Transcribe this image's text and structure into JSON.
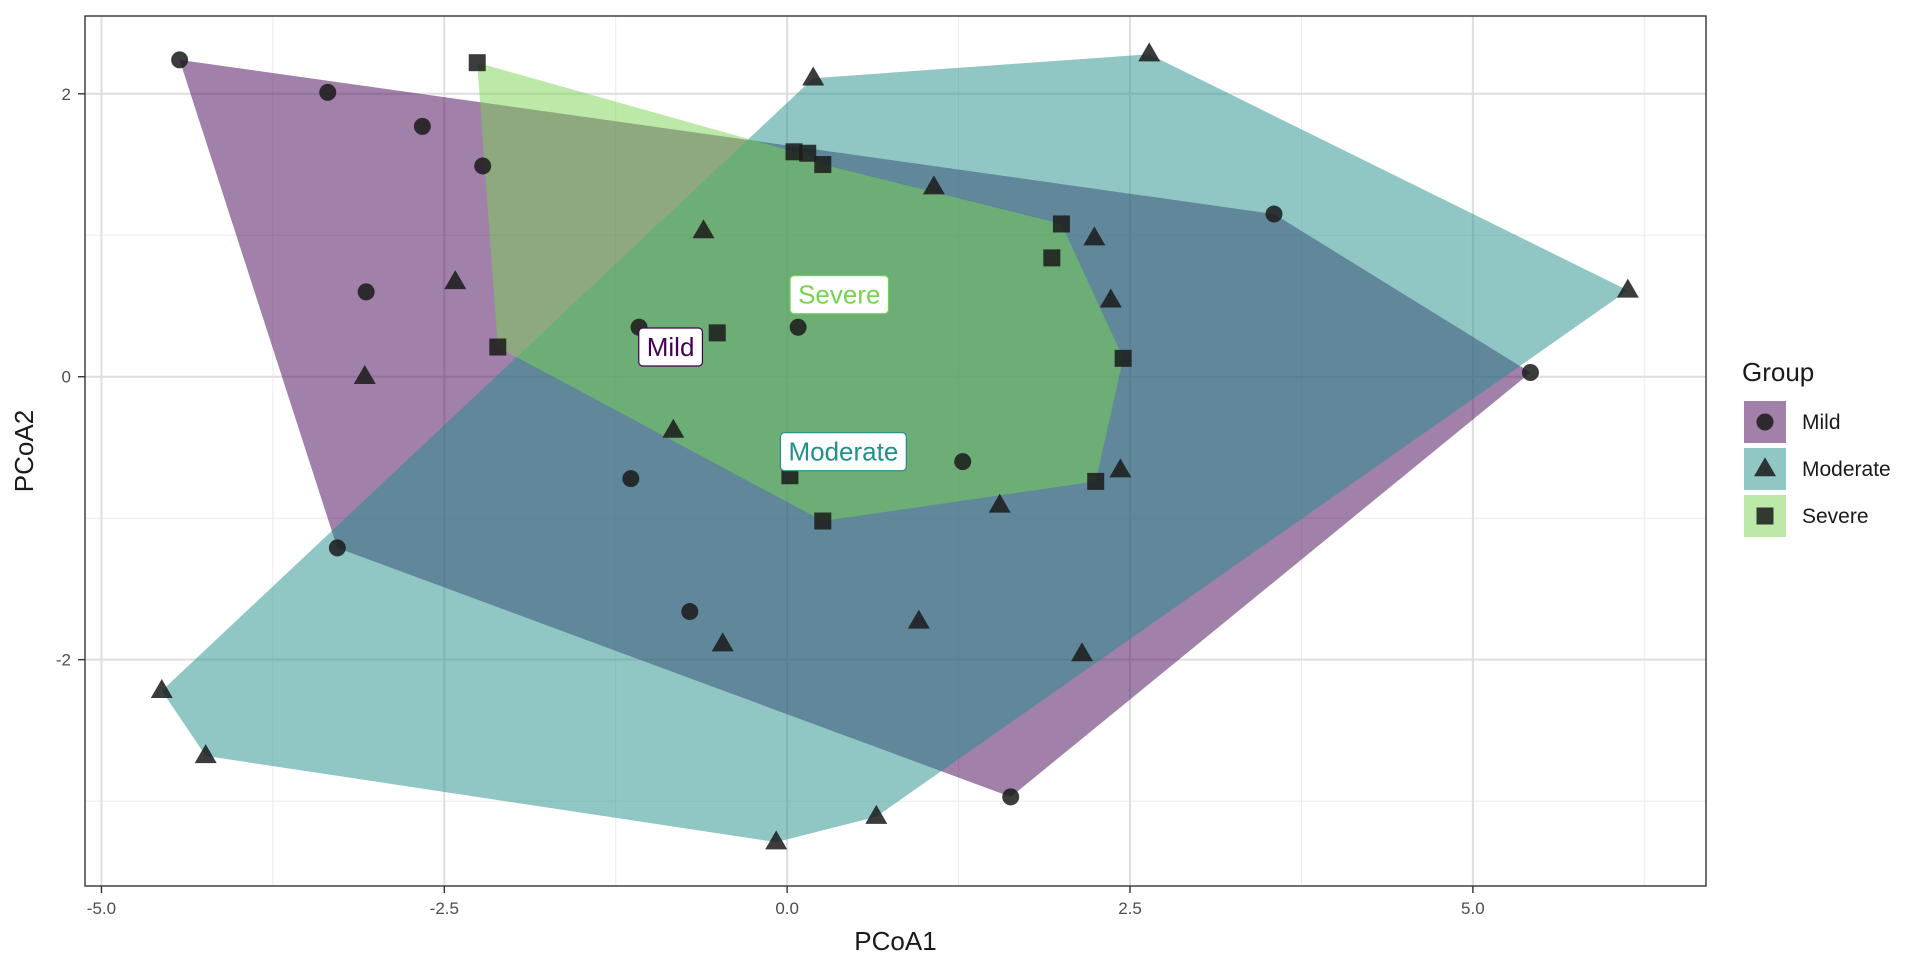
{
  "chart_data": {
    "type": "scatter",
    "title": "",
    "xlabel": "PCoA1",
    "ylabel": "PCoA2",
    "xlim": [
      -5.12,
      6.7
    ],
    "ylim": [
      -3.6,
      2.55
    ],
    "x_ticks": [
      -5.0,
      -2.5,
      0.0,
      2.5,
      5.0
    ],
    "x_tick_labels": [
      "-5.0",
      "-2.5",
      "0.0",
      "2.5",
      "5.0"
    ],
    "y_ticks": [
      -2,
      0,
      2
    ],
    "y_tick_labels": [
      "-2",
      "0",
      "2"
    ],
    "grid": true,
    "legend": {
      "title": "Group",
      "position": "right"
    },
    "series": [
      {
        "name": "Mild",
        "shape": "circle",
        "color": "#440154",
        "label_color": "#440154",
        "points": [
          {
            "x": -4.43,
            "y": 2.24
          },
          {
            "x": -3.35,
            "y": 2.01
          },
          {
            "x": -2.66,
            "y": 1.77
          },
          {
            "x": -2.22,
            "y": 1.49
          },
          {
            "x": -3.07,
            "y": 0.6
          },
          {
            "x": -1.08,
            "y": 0.35
          },
          {
            "x": 0.08,
            "y": 0.35
          },
          {
            "x": -1.14,
            "y": -0.72
          },
          {
            "x": 1.28,
            "y": -0.6
          },
          {
            "x": -3.28,
            "y": -1.21
          },
          {
            "x": -0.71,
            "y": -1.66
          },
          {
            "x": 3.55,
            "y": 1.15
          },
          {
            "x": 5.42,
            "y": 0.03
          },
          {
            "x": 1.63,
            "y": -2.97
          }
        ],
        "hull": [
          {
            "x": -4.43,
            "y": 2.24
          },
          {
            "x": 3.55,
            "y": 1.15
          },
          {
            "x": 5.42,
            "y": 0.03
          },
          {
            "x": 1.63,
            "y": -2.97
          },
          {
            "x": -3.28,
            "y": -1.21
          }
        ],
        "label": {
          "text": "Mild",
          "x": -0.85,
          "y": 0.21
        }
      },
      {
        "name": "Moderate",
        "shape": "triangle",
        "color": "#21908C",
        "label_color": "#21908C",
        "points": [
          {
            "x": 0.19,
            "y": 2.11
          },
          {
            "x": 2.64,
            "y": 2.28
          },
          {
            "x": 6.13,
            "y": 0.61
          },
          {
            "x": 1.07,
            "y": 1.34
          },
          {
            "x": -0.61,
            "y": 1.03
          },
          {
            "x": 2.24,
            "y": 0.98
          },
          {
            "x": 2.36,
            "y": 0.54
          },
          {
            "x": -2.42,
            "y": 0.67
          },
          {
            "x": -3.08,
            "y": 0.0
          },
          {
            "x": -0.83,
            "y": -0.38
          },
          {
            "x": 2.43,
            "y": -0.66
          },
          {
            "x": 1.55,
            "y": -0.91
          },
          {
            "x": 0.96,
            "y": -1.73
          },
          {
            "x": -0.47,
            "y": -1.89
          },
          {
            "x": 2.15,
            "y": -1.96
          },
          {
            "x": -4.56,
            "y": -2.22
          },
          {
            "x": -4.24,
            "y": -2.68
          },
          {
            "x": 0.65,
            "y": -3.11
          },
          {
            "x": -0.08,
            "y": -3.29
          }
        ],
        "hull": [
          {
            "x": 0.19,
            "y": 2.11
          },
          {
            "x": 2.64,
            "y": 2.28
          },
          {
            "x": 6.13,
            "y": 0.61
          },
          {
            "x": 0.65,
            "y": -3.11
          },
          {
            "x": -0.08,
            "y": -3.29
          },
          {
            "x": -4.24,
            "y": -2.68
          },
          {
            "x": -4.56,
            "y": -2.22
          }
        ],
        "label": {
          "text": "Moderate",
          "x": 0.41,
          "y": -0.53
        }
      },
      {
        "name": "Severe",
        "shape": "square",
        "color": "#7AD151",
        "label_color": "#7AD151",
        "points": [
          {
            "x": -2.26,
            "y": 2.22
          },
          {
            "x": 0.05,
            "y": 1.59
          },
          {
            "x": 0.15,
            "y": 1.58
          },
          {
            "x": 0.26,
            "y": 1.5
          },
          {
            "x": 2.0,
            "y": 1.08
          },
          {
            "x": 1.93,
            "y": 0.84
          },
          {
            "x": -0.51,
            "y": 0.31
          },
          {
            "x": -2.11,
            "y": 0.21
          },
          {
            "x": 2.45,
            "y": 0.13
          },
          {
            "x": 0.02,
            "y": -0.7
          },
          {
            "x": 2.25,
            "y": -0.74
          },
          {
            "x": 0.26,
            "y": -1.02
          }
        ],
        "hull": [
          {
            "x": -2.26,
            "y": 2.22
          },
          {
            "x": 0.05,
            "y": 1.59
          },
          {
            "x": 0.15,
            "y": 1.58
          },
          {
            "x": 0.26,
            "y": 1.5
          },
          {
            "x": 2.0,
            "y": 1.08
          },
          {
            "x": 2.45,
            "y": 0.13
          },
          {
            "x": 2.25,
            "y": -0.74
          },
          {
            "x": 0.26,
            "y": -1.02
          },
          {
            "x": -2.11,
            "y": 0.21
          }
        ],
        "label": {
          "text": "Severe",
          "x": 0.38,
          "y": 0.58
        }
      }
    ]
  }
}
